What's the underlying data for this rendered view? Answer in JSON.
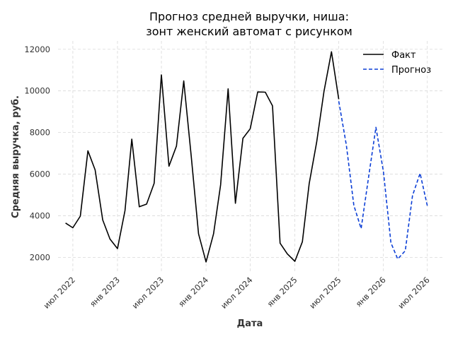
{
  "chart_data": {
    "type": "line",
    "title": [
      "Прогноз средней выручки, ниша:",
      "зонт женский автомат с рисунком"
    ],
    "xlabel": "Дата",
    "ylabel": "Средняя выручка, руб.",
    "ylim": [
      1300,
      12400
    ],
    "yticks": [
      2000,
      4000,
      6000,
      8000,
      10000,
      12000
    ],
    "xticks": [
      {
        "date": "2022-07-01",
        "label": "июл 2022"
      },
      {
        "date": "2023-01-01",
        "label": "янв 2023"
      },
      {
        "date": "2023-07-01",
        "label": "июл 2023"
      },
      {
        "date": "2024-01-01",
        "label": "янв 2024"
      },
      {
        "date": "2024-07-01",
        "label": "июл 2024"
      },
      {
        "date": "2025-01-01",
        "label": "янв 2025"
      },
      {
        "date": "2025-07-01",
        "label": "июл 2025"
      },
      {
        "date": "2026-01-01",
        "label": "янв 2026"
      },
      {
        "date": "2026-07-01",
        "label": "июл 2026"
      }
    ],
    "xlim": [
      "2022-05-01",
      "2026-09-01"
    ],
    "grid": true,
    "legend_position": "top-right",
    "series": [
      {
        "name": "Факт",
        "color": "#000000",
        "style": "solid",
        "points": [
          [
            "2022-06-01",
            3650
          ],
          [
            "2022-07-01",
            3420
          ],
          [
            "2022-08-01",
            3980
          ],
          [
            "2022-09-01",
            7120
          ],
          [
            "2022-10-01",
            6200
          ],
          [
            "2022-11-01",
            3800
          ],
          [
            "2022-12-01",
            2880
          ],
          [
            "2023-01-01",
            2420
          ],
          [
            "2023-02-01",
            4250
          ],
          [
            "2023-03-01",
            7680
          ],
          [
            "2023-04-01",
            4430
          ],
          [
            "2023-05-01",
            4560
          ],
          [
            "2023-06-01",
            5560
          ],
          [
            "2023-07-01",
            10770
          ],
          [
            "2023-08-01",
            6380
          ],
          [
            "2023-09-01",
            7350
          ],
          [
            "2023-10-01",
            10480
          ],
          [
            "2023-11-01",
            6850
          ],
          [
            "2023-12-01",
            3130
          ],
          [
            "2024-01-01",
            1780
          ],
          [
            "2024-02-01",
            3130
          ],
          [
            "2024-03-01",
            5490
          ],
          [
            "2024-04-01",
            10100
          ],
          [
            "2024-05-01",
            4600
          ],
          [
            "2024-06-01",
            7720
          ],
          [
            "2024-07-01",
            8180
          ],
          [
            "2024-08-01",
            9950
          ],
          [
            "2024-09-01",
            9940
          ],
          [
            "2024-10-01",
            9280
          ],
          [
            "2024-11-01",
            2680
          ],
          [
            "2024-12-01",
            2170
          ],
          [
            "2025-01-01",
            1810
          ],
          [
            "2025-02-01",
            2750
          ],
          [
            "2025-03-01",
            5540
          ],
          [
            "2025-04-01",
            7540
          ],
          [
            "2025-05-01",
            9970
          ],
          [
            "2025-06-01",
            11880
          ],
          [
            "2025-07-01",
            9600
          ]
        ]
      },
      {
        "name": "Прогноз",
        "color": "#0b3ed6",
        "style": "dashed",
        "points": [
          [
            "2025-07-01",
            9500
          ],
          [
            "2025-08-01",
            7400
          ],
          [
            "2025-09-01",
            4500
          ],
          [
            "2025-10-01",
            3380
          ],
          [
            "2025-11-01",
            5870
          ],
          [
            "2025-12-01",
            8250
          ],
          [
            "2026-01-01",
            6120
          ],
          [
            "2026-02-01",
            2700
          ],
          [
            "2026-03-01",
            1920
          ],
          [
            "2026-04-01",
            2320
          ],
          [
            "2026-05-01",
            4970
          ],
          [
            "2026-06-01",
            6040
          ],
          [
            "2026-07-01",
            4480
          ]
        ]
      }
    ]
  }
}
